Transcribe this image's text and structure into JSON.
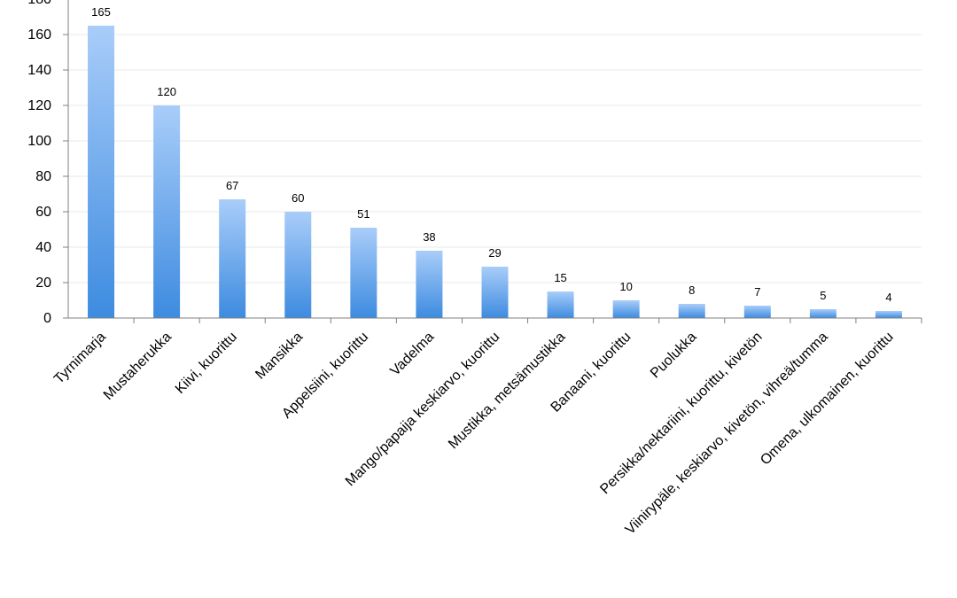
{
  "chart_data": {
    "type": "bar",
    "title": "",
    "xlabel": "",
    "ylabel": "",
    "ylim": [
      0,
      180
    ],
    "yticks": [
      0,
      20,
      40,
      60,
      80,
      100,
      120,
      140,
      160,
      180
    ],
    "grid": true,
    "legend": "none",
    "categories": [
      "Tyrnimarja",
      "Mustaherukka",
      "Kiivi, kuorittu",
      "Mansikka",
      "Appelsiini, kuorittu",
      "Vadelma",
      "Mango/papaija keskiarvo, kuorittu",
      "Mustikka, metsämustikka",
      "Banaani, kuorittu",
      "Puolukka",
      "Persikka/nektariini, kuorittu, kivetön",
      "Viinirypäle, keskiarvo, kivetön, vihreä/tumma",
      "Omena, ulkomainen, kuorittu"
    ],
    "values": [
      165,
      120,
      67,
      60,
      51,
      38,
      29,
      15,
      10,
      8,
      7,
      5,
      4
    ],
    "colors": {
      "bar_top": "#a9cdf9",
      "bar_bottom": "#3d8be0",
      "grid": "#e8e8e8",
      "axis": "#808080"
    }
  }
}
